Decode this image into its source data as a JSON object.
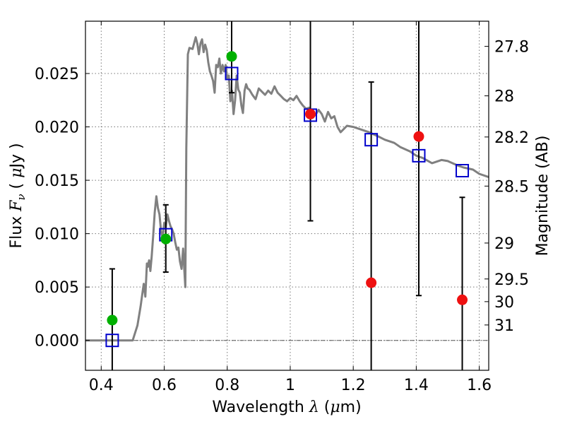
{
  "chart_data": {
    "type": "scatter",
    "xlabel": {
      "prefix": "Wavelength ",
      "lambda": "λ",
      "unit_open": " (",
      "mu": "μ",
      "unit_rest": "m)"
    },
    "ylabel": {
      "prefix": "Flux  ",
      "F": "F",
      "nu": "ν",
      "unit_open": "  ( ",
      "mu": "μ",
      "unit_rest": "Jy )"
    },
    "y2label": "Magnitude (AB)",
    "xlim": [
      0.35,
      1.63
    ],
    "ylim": [
      -0.0028,
      0.0299
    ],
    "grid": true,
    "x_ticks": [
      {
        "value": 0.4,
        "label": "0.4"
      },
      {
        "value": 0.6,
        "label": "0.6"
      },
      {
        "value": 0.8,
        "label": "0.8"
      },
      {
        "value": 1.0,
        "label": "1"
      },
      {
        "value": 1.2,
        "label": "1.2"
      },
      {
        "value": 1.4,
        "label": "1.4"
      },
      {
        "value": 1.6,
        "label": "1.6"
      }
    ],
    "y_ticks": [
      {
        "value": 0.0,
        "label": "0.000"
      },
      {
        "value": 0.005,
        "label": "0.005"
      },
      {
        "value": 0.01,
        "label": "0.010"
      },
      {
        "value": 0.015,
        "label": "0.015"
      },
      {
        "value": 0.02,
        "label": "0.020"
      },
      {
        "value": 0.025,
        "label": "0.025"
      }
    ],
    "magnitude_ticks": [
      {
        "value": 27.8,
        "label": "27.8"
      },
      {
        "value": 28.0,
        "label": "28"
      },
      {
        "value": 28.2,
        "label": "28.2"
      },
      {
        "value": 28.5,
        "label": "28.5"
      },
      {
        "value": 29.0,
        "label": "29"
      },
      {
        "value": 29.5,
        "label": "29.5"
      },
      {
        "value": 30.0,
        "label": "30"
      },
      {
        "value": 31.0,
        "label": "31"
      }
    ],
    "colors": {
      "sed_line": "#808080",
      "detection_green": "#00b000",
      "detection_red": "#ee1111",
      "model_square": "#0000cc",
      "error_bar": "#000000",
      "zero_line": "#555555",
      "grid": "#777777"
    },
    "series": [
      {
        "kind": "line",
        "x": [
          0.35,
          0.5,
          0.515,
          0.525,
          0.535,
          0.54,
          0.545,
          0.548,
          0.552,
          0.556,
          0.56,
          0.565,
          0.57,
          0.575,
          0.58,
          0.585,
          0.59,
          0.595,
          0.6,
          0.605,
          0.61,
          0.615,
          0.62,
          0.625,
          0.63,
          0.635,
          0.64,
          0.645,
          0.65,
          0.655,
          0.66,
          0.665,
          0.667,
          0.67,
          0.675,
          0.68,
          0.69,
          0.7,
          0.705,
          0.71,
          0.715,
          0.72,
          0.725,
          0.73,
          0.735,
          0.74,
          0.745,
          0.75,
          0.755,
          0.76,
          0.765,
          0.77,
          0.775,
          0.78,
          0.785,
          0.79,
          0.795,
          0.8,
          0.805,
          0.81,
          0.815,
          0.82,
          0.825,
          0.83,
          0.835,
          0.84,
          0.845,
          0.85,
          0.855,
          0.86,
          0.865,
          0.87,
          0.88,
          0.89,
          0.9,
          0.91,
          0.92,
          0.93,
          0.94,
          0.95,
          0.96,
          0.97,
          0.98,
          0.99,
          1.0,
          1.01,
          1.02,
          1.03,
          1.04,
          1.05,
          1.06,
          1.07,
          1.08,
          1.09,
          1.1,
          1.11,
          1.12,
          1.13,
          1.14,
          1.15,
          1.16,
          1.18,
          1.2,
          1.22,
          1.25,
          1.28,
          1.3,
          1.33,
          1.35,
          1.38,
          1.4,
          1.42,
          1.45,
          1.48,
          1.5,
          1.53,
          1.55,
          1.58,
          1.6,
          1.63
        ],
        "y": [
          0.0,
          0.0,
          0.0014,
          0.0032,
          0.0053,
          0.0041,
          0.0072,
          0.0069,
          0.0075,
          0.0065,
          0.0078,
          0.0098,
          0.012,
          0.0135,
          0.0124,
          0.0118,
          0.0102,
          0.0096,
          0.011,
          0.0106,
          0.0118,
          0.0112,
          0.0107,
          0.0104,
          0.01,
          0.0092,
          0.0085,
          0.0087,
          0.0074,
          0.0067,
          0.0086,
          0.006,
          0.005,
          0.018,
          0.0268,
          0.0274,
          0.0273,
          0.0284,
          0.0278,
          0.0268,
          0.0278,
          0.0282,
          0.027,
          0.0277,
          0.0272,
          0.026,
          0.0252,
          0.0248,
          0.0243,
          0.0232,
          0.0258,
          0.0256,
          0.0264,
          0.025,
          0.0258,
          0.0252,
          0.0258,
          0.0246,
          0.0248,
          0.0224,
          0.0234,
          0.0212,
          0.0225,
          0.0248,
          0.0235,
          0.0232,
          0.022,
          0.0213,
          0.0234,
          0.024,
          0.0236,
          0.0235,
          0.023,
          0.0226,
          0.0236,
          0.0233,
          0.023,
          0.0234,
          0.0231,
          0.0238,
          0.0232,
          0.0229,
          0.0226,
          0.0224,
          0.0227,
          0.0225,
          0.0229,
          0.0224,
          0.022,
          0.0217,
          0.0218,
          0.0214,
          0.0211,
          0.0216,
          0.0212,
          0.0205,
          0.0214,
          0.0208,
          0.021,
          0.02,
          0.0195,
          0.0201,
          0.02,
          0.0198,
          0.0195,
          0.0191,
          0.0188,
          0.0185,
          0.0181,
          0.0177,
          0.0173,
          0.0171,
          0.0166,
          0.0169,
          0.0168,
          0.0164,
          0.0162,
          0.016,
          0.0156,
          0.0153
        ]
      },
      {
        "kind": "points",
        "marker": "square",
        "x": [
          0.435,
          0.605,
          0.814,
          1.064,
          1.257,
          1.408,
          1.546
        ],
        "y": [
          0.0,
          0.0099,
          0.025,
          0.0211,
          0.0188,
          0.0173,
          0.0159
        ]
      },
      {
        "kind": "errorbars",
        "marker": "circle",
        "x": [
          0.435,
          0.605,
          0.814,
          1.064,
          1.257,
          1.408,
          1.546
        ],
        "y": [
          0.0019,
          0.0095,
          0.0266,
          0.0212,
          0.0054,
          0.0191,
          0.0038
        ],
        "color_group": [
          "green",
          "green",
          "green",
          "red",
          "red",
          "red",
          "red"
        ],
        "y_low": [
          -0.0028,
          0.0064,
          0.0232,
          0.0112,
          -0.0028,
          0.0042,
          -0.0028
        ],
        "y_high": [
          0.0067,
          0.0127,
          0.0299,
          0.0299,
          0.0242,
          0.0299,
          0.0134
        ]
      }
    ]
  }
}
